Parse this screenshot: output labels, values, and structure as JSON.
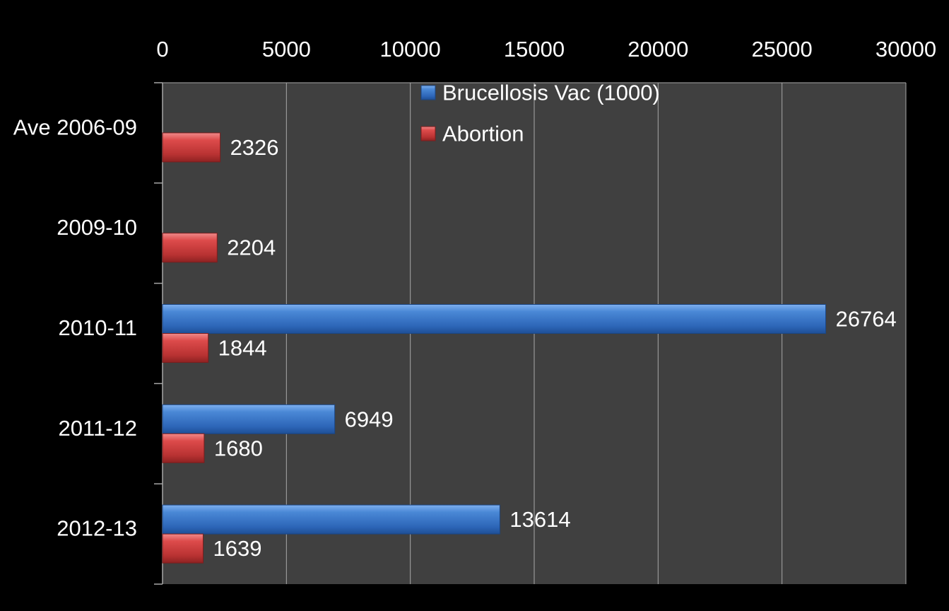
{
  "chart_data": {
    "type": "bar",
    "orientation": "horizontal",
    "title": "",
    "xlabel": "",
    "ylabel": "",
    "categories": [
      "Ave 2006-09",
      "2009-10",
      "2010-11",
      "2011-12",
      "2012-13"
    ],
    "series": [
      {
        "name": "Brucellosis Vac (1000)",
        "color": "#3a78c9",
        "values": [
          null,
          null,
          26764,
          6949,
          13614
        ]
      },
      {
        "name": "Abortion",
        "color": "#c83b3b",
        "values": [
          2326,
          2204,
          1844,
          1680,
          1639
        ]
      }
    ],
    "xlim": [
      0,
      30000
    ],
    "x_ticks": [
      0,
      5000,
      10000,
      15000,
      20000,
      25000,
      30000
    ],
    "x_tick_labels": [
      "0",
      "5000",
      "10000",
      "15000",
      "20000",
      "25000",
      "30000"
    ],
    "x_axis_position": "top",
    "grid": true,
    "legend_position": "top-center",
    "plot_background": "#404040",
    "page_background": "#000000"
  }
}
